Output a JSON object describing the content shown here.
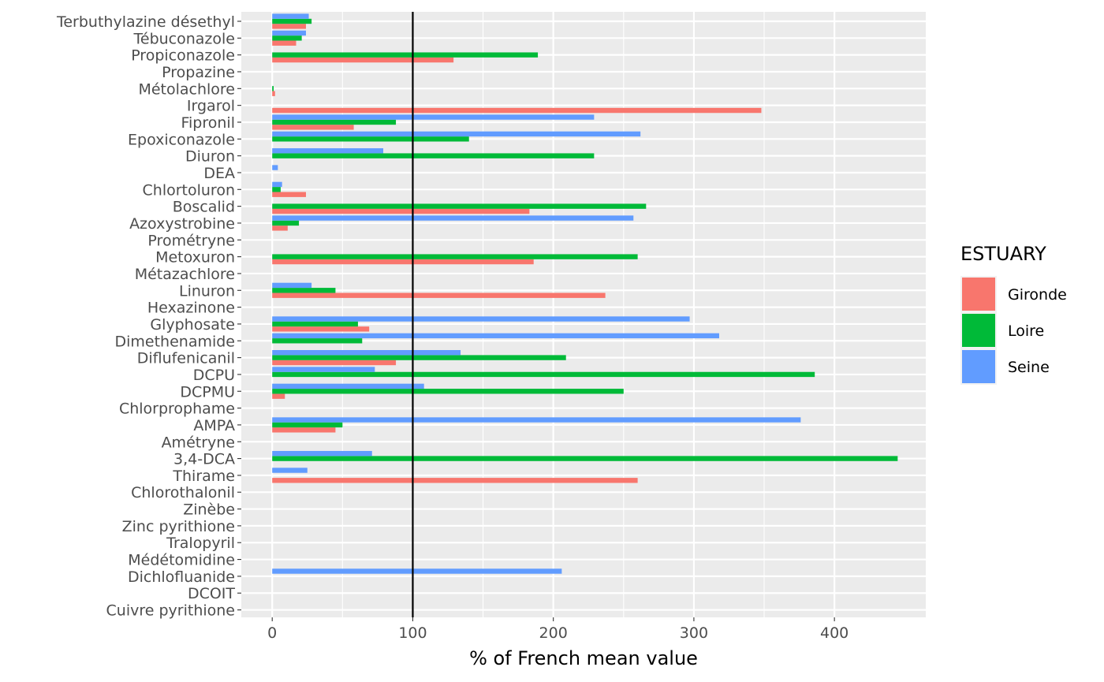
{
  "chart_data": {
    "type": "bar",
    "orientation": "horizontal",
    "xlabel": "% of French mean value",
    "ylabel": "",
    "xlim": [
      -22,
      465
    ],
    "xticks": [
      0,
      100,
      200,
      300,
      400
    ],
    "reference_line": 100,
    "grid": true,
    "legend": {
      "title": "ESTUARY",
      "placement": "right"
    },
    "categories": [
      "Terbuthylazine désethyl",
      "Tébuconazole",
      "Propiconazole",
      "Propazine",
      "Métolachlore",
      "Irgarol",
      "Fipronil",
      "Epoxiconazole",
      "Diuron",
      "DEA",
      "Chlortoluron",
      "Boscalid",
      "Azoxystrobine",
      "Prométryne",
      "Metoxuron",
      "Métazachlore",
      "Linuron",
      "Hexazinone",
      "Glyphosate",
      "Dimethenamide",
      "Diflufenicanil",
      "DCPU",
      "DCPMU",
      "Chlorprophame",
      "AMPA",
      "Amétryne",
      "3,4-DCA",
      "Thirame",
      "Chlorothalonil",
      "Zinèbe",
      "Zinc pyrithione",
      "Tralopyril",
      "Médétomidine",
      "Dichlofluanide",
      "DCOIT",
      "Cuivre pyrithione"
    ],
    "series": [
      {
        "name": "Gironde",
        "color": "#F8766D",
        "values": [
          24,
          17,
          129,
          0,
          2,
          348,
          58,
          0,
          0,
          0,
          24,
          183,
          11,
          0,
          186,
          0,
          237,
          0,
          69,
          0,
          88,
          0,
          9,
          0,
          45,
          0,
          0,
          260,
          0,
          0,
          0,
          0,
          0,
          0,
          0,
          0
        ]
      },
      {
        "name": "Loire",
        "color": "#00BA38",
        "values": [
          28,
          21,
          189,
          0,
          1,
          0,
          88,
          140,
          229,
          0,
          6,
          266,
          19,
          0,
          260,
          0,
          45,
          0,
          61,
          64,
          209,
          386,
          250,
          0,
          50,
          0,
          445,
          0,
          0,
          0,
          0,
          0,
          0,
          0,
          0,
          0
        ]
      },
      {
        "name": "Seine",
        "color": "#619CFF",
        "values": [
          26,
          24,
          0,
          0,
          0,
          0,
          229,
          262,
          79,
          4,
          7,
          0,
          257,
          0,
          0,
          0,
          28,
          0,
          297,
          318,
          134,
          73,
          108,
          0,
          376,
          0,
          71,
          25,
          0,
          0,
          0,
          0,
          0,
          206,
          0,
          0
        ]
      }
    ]
  }
}
